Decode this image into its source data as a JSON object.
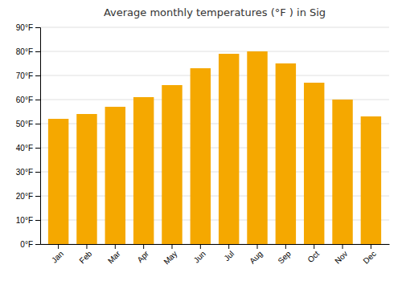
{
  "chart_data": {
    "type": "bar",
    "title": "Average monthly temperatures (°F ) in Sig",
    "categories": [
      "Jan",
      "Feb",
      "Mar",
      "Apr",
      "May",
      "Jun",
      "Jul",
      "Aug",
      "Sep",
      "Oct",
      "Nov",
      "Dec"
    ],
    "values": [
      52,
      54,
      57,
      61,
      66,
      73,
      79,
      80,
      75,
      67,
      60,
      53
    ],
    "color": "#F5A800",
    "ylim": [
      0,
      90
    ],
    "yticks": [
      {
        "value": 0,
        "label": "0°F"
      },
      {
        "value": 10,
        "label": "10°F"
      },
      {
        "value": 20,
        "label": "20°F"
      },
      {
        "value": 30,
        "label": "30°F"
      },
      {
        "value": 40,
        "label": "40°F"
      },
      {
        "value": 50,
        "label": "50°F"
      },
      {
        "value": 60,
        "label": "60°F"
      },
      {
        "value": 70,
        "label": "70°F"
      },
      {
        "value": 80,
        "label": "80°F"
      },
      {
        "value": 90,
        "label": "90°F"
      }
    ],
    "grid": true
  }
}
